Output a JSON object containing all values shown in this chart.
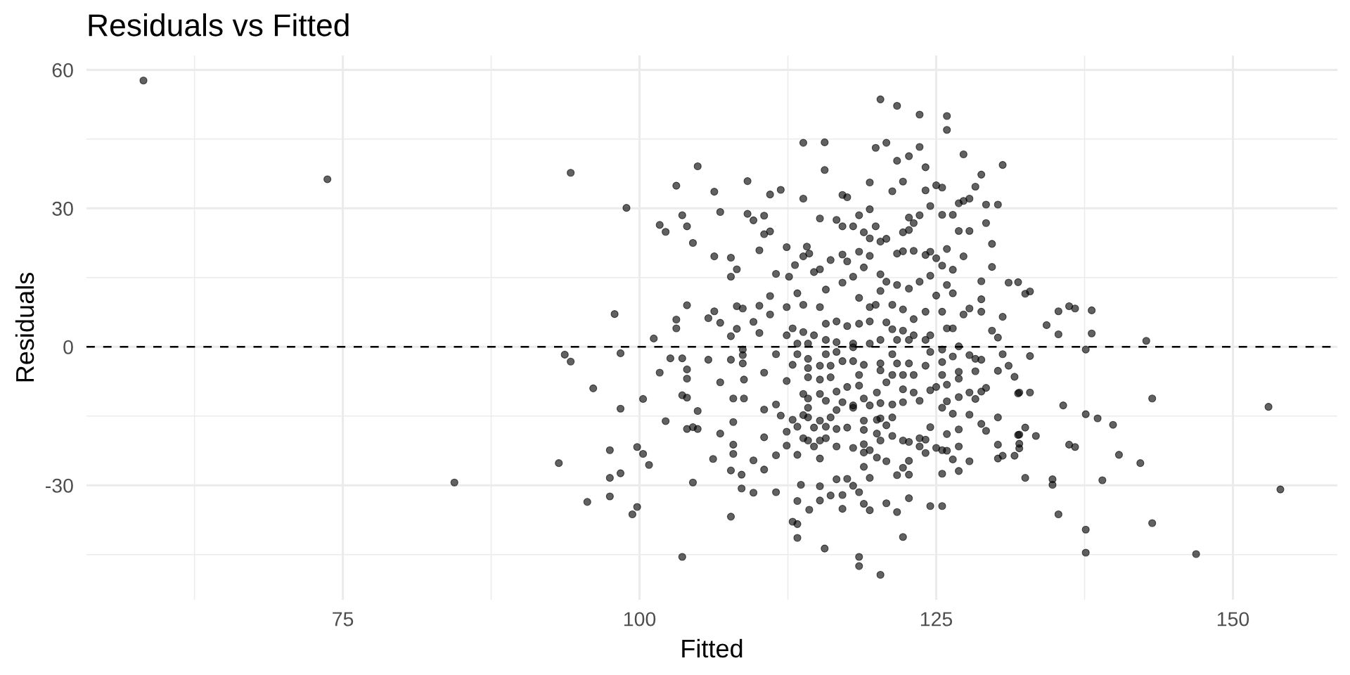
{
  "chart_data": {
    "type": "scatter",
    "title": "Residuals vs Fitted",
    "xlabel": "Fitted",
    "ylabel": "Residuals",
    "xlim": [
      53.4,
      158.8
    ],
    "ylim": [
      -54.8,
      63.1
    ],
    "xticks": [
      {
        "value": 62.5,
        "label": null
      },
      75,
      {
        "value": 87.5,
        "label": null
      },
      100,
      {
        "value": 112.5,
        "label": null
      },
      125,
      {
        "value": 137.5,
        "label": null
      },
      150
    ],
    "yticks": [
      {
        "value": -45,
        "label": null
      },
      -30,
      {
        "value": -15,
        "label": null
      },
      0,
      {
        "value": 15,
        "label": null
      },
      30,
      {
        "value": 45,
        "label": null
      },
      60
    ],
    "grid": true,
    "marker": "circle",
    "ref_lines": [
      {
        "axis": "y",
        "value": 0,
        "color": "#000000",
        "line_style": "dashed"
      }
    ],
    "series": [
      {
        "color": "#000000",
        "x": [
          58.2,
          73.7,
          84.4,
          94.2,
          98.9,
          93.7,
          94.2,
          96.1,
          97.9,
          98.4,
          98.4,
          93.2,
          97.5,
          97.5,
          98.4,
          97.5,
          95.6,
          99.4,
          99.8,
          99.8,
          100.3,
          100.8,
          100.3,
          101.2,
          101.7,
          102.2,
          103.1,
          103.6,
          104.0,
          104.5,
          104.9,
          104.0,
          103.1,
          103.1,
          102.6,
          103.6,
          101.7,
          104.0,
          104.0,
          103.6,
          104.0,
          104.9,
          102.2,
          104.0,
          104.5,
          104.9,
          104.5,
          103.6,
          120.3,
          121.7,
          123.6,
          125.9,
          125.9,
          113.8,
          115.6,
          119.9,
          120.8,
          123.6,
          122.7,
          121.7,
          124.1,
          127.3,
          130.6,
          115.6,
          128.8,
          128.3,
          119.4,
          122.2,
          121.3,
          124.1,
          125.0,
          125.5,
          106.3,
          109.1,
          111.0,
          111.9,
          113.8,
          117.1,
          117.5,
          126.9,
          127.3,
          127.8,
          129.2,
          130.2,
          106.8,
          109.1,
          109.6,
          110.5,
          110.5,
          111.0,
          110.1,
          106.3,
          107.7,
          108.2,
          107.7,
          115.2,
          129.2,
          129.7,
          129.7,
          128.8,
          131.1,
          131.9,
          127.8,
          126.9,
          127.3,
          125.5,
          126.4,
          124.5,
          123.6,
          119.4,
          118.5,
          116.6,
          119.9,
          112.4,
          114.1,
          113.1,
          112.6,
          111.5,
          111.0,
          105.8,
          106.3,
          106.8,
          108.2,
          107.7,
          108.2,
          108.7,
          109.6,
          110.1,
          110.1,
          111.0,
          112.4,
          128.8,
          129.7,
          130.2,
          130.6,
          130.6,
          127.8,
          127.3,
          128.8,
          114.3,
          113.8,
          115.2,
          117.1,
          118.0,
          118.9,
          119.4,
          120.3,
          120.8,
          122.2,
          122.7,
          122.7,
          123.1,
          121.7,
          122.2,
          123.1,
          124.1,
          124.5,
          125.0,
          125.5,
          125.9,
          126.4,
          125.9,
          126.4,
          124.5,
          125.0,
          118.9,
          117.1,
          116.1,
          117.5,
          118.5,
          119.4,
          120.3,
          120.8,
          121.7,
          122.7,
          123.6,
          114.7,
          115.7,
          117.1,
          118.0,
          118.5,
          119.4,
          119.9,
          120.3,
          121.3,
          122.2,
          123.1,
          124.1,
          125.5,
          126.4,
          125.9,
          113.8,
          113.3,
          112.9,
          112.4,
          113.8,
          114.7,
          115.2,
          115.7,
          116.6,
          117.5,
          118.5,
          119.4,
          120.8,
          121.3,
          122.2,
          123.1,
          124.5,
          113.3,
          114.2,
          115.7,
          116.6,
          118.0,
          119.4,
          120.3,
          121.7,
          122.7,
          124.1,
          125.5,
          126.9,
          120.3,
          118.5,
          118.5,
          115.6,
          122.2,
          113.3,
          112.9,
          113.3,
          107.7,
          114.3,
          117.1,
          119.4,
          121.7,
          124.5,
          125.5,
          120.8,
          122.7,
          118.9,
          113.3,
          115.2,
          108.6,
          109.6,
          111.5,
          113.6,
          115.2,
          116.1,
          116.6,
          117.5,
          118.0,
          118.5,
          117.1,
          119.4,
          121.7,
          122.7,
          125.5,
          122.2,
          118.9,
          107.7,
          108.6,
          110.5,
          106.2,
          109.6,
          107.9,
          111.5,
          113.3,
          115.2,
          120.0,
          120.8,
          122.7,
          124.1,
          126.4,
          127.8,
          126.9,
          130.2,
          130.6,
          131.6,
          130.2,
          125.9,
          106.8,
          107.9,
          110.5,
          112.4,
          112.4,
          107.9,
          107.9,
          108.8,
          110.5,
          111.9,
          108.8,
          106.8,
          110.5,
          130.2,
          128.8,
          129.2,
          126.9,
          125.9,
          124.5,
          127.8,
          131.6,
          130.2,
          131.9,
          131.1,
          128.3,
          128.8,
          125.9,
          126.9,
          128.3,
          131.9,
          128.8,
          129.2,
          127.8,
          112.4,
          113.3,
          114.2,
          115.7,
          116.6,
          118.0,
          121.3,
          122.7,
          124.5,
          125.5,
          126.4,
          127.8,
          128.3,
          112.9,
          114.2,
          115.2,
          116.1,
          117.1,
          118.0,
          118.9,
          120.3,
          121.7,
          124.1,
          126.9,
          114.2,
          115.2,
          116.1,
          118.5,
          120.3,
          121.3,
          122.2,
          123.1,
          125.5,
          125.9,
          126.9,
          118.5,
          117.5,
          116.6,
          120.0,
          120.8,
          122.2,
          123.1,
          124.5,
          125.0,
          113.8,
          115.2,
          114.2,
          115.7,
          117.1,
          118.0,
          118.9,
          119.4,
          120.3,
          121.3,
          122.2,
          123.6,
          125.5,
          126.4,
          114.2,
          113.8,
          114.2,
          115.2,
          116.1,
          116.6,
          117.5,
          118.0,
          118.9,
          120.0,
          120.3,
          121.3,
          112.9,
          113.3,
          114.7,
          115.7,
          116.6,
          118.9,
          120.0,
          120.8,
          121.3,
          120.3,
          122.2,
          122.7,
          123.6,
          124.1,
          123.6,
          125.0,
          125.5,
          113.8,
          114.2,
          114.7,
          115.2,
          115.7,
          116.6,
          118.0,
          118.9,
          119.4,
          118.9,
          126.9,
          105.8,
          107.7,
          108.7,
          108.7,
          108.7,
          111.5,
          111.5,
          132.5,
          132.9,
          135.3,
          136.2,
          136.7,
          138.1,
          134.3,
          135.3,
          138.1,
          142.7,
          137.6,
          132.9,
          132.0,
          132.9,
          135.7,
          143.2,
          153.0,
          137.6,
          138.6,
          139.9,
          132.5,
          132.0,
          133.4,
          132.0,
          132.0,
          136.2,
          136.7,
          140.4,
          142.2,
          132.5,
          134.8,
          134.8,
          139.0,
          154.0,
          135.3,
          143.2,
          137.6,
          137.6,
          146.9
        ],
        "values": [
          57.7,
          36.3,
          -29.4,
          37.7,
          30.1,
          -1.7,
          -3.2,
          -9.0,
          7.1,
          -1.4,
          -13.4,
          -25.2,
          -22.4,
          -28.4,
          -27.4,
          -32.4,
          -33.6,
          -36.3,
          -34.7,
          -21.7,
          -23.2,
          -25.6,
          -11.3,
          1.8,
          26.4,
          24.9,
          34.9,
          28.5,
          26.1,
          22.5,
          39.1,
          9.0,
          5.9,
          4.0,
          -2.5,
          -2.5,
          -5.6,
          -4.9,
          -6.9,
          -10.5,
          -11.0,
          -13.9,
          -16.1,
          -17.8,
          -17.4,
          -17.8,
          -29.4,
          -45.5,
          53.6,
          52.2,
          50.3,
          50.0,
          47.0,
          44.2,
          44.3,
          43.1,
          44.2,
          43.3,
          41.3,
          40.3,
          38.9,
          41.7,
          39.4,
          38.3,
          37.3,
          34.7,
          35.6,
          35.8,
          33.7,
          33.9,
          35.0,
          34.5,
          33.6,
          35.9,
          33.0,
          34.0,
          32.1,
          32.9,
          32.4,
          31.1,
          31.6,
          32.1,
          30.8,
          30.8,
          29.2,
          28.8,
          27.4,
          28.4,
          24.4,
          25.0,
          20.9,
          19.6,
          19.3,
          16.8,
          15.2,
          27.8,
          26.8,
          22.3,
          17.3,
          14.2,
          13.9,
          14.0,
          25.1,
          25.1,
          19.6,
          28.6,
          28.6,
          30.5,
          28.5,
          29.8,
          28.5,
          27.5,
          26.1,
          21.6,
          21.7,
          17.7,
          15.2,
          15.8,
          11.0,
          6.2,
          7.7,
          5.2,
          3.9,
          2.3,
          8.8,
          8.3,
          5.4,
          8.9,
          3.0,
          7.0,
          8.6,
          10.3,
          3.5,
          2.0,
          6.5,
          -1.6,
          8.3,
          7.0,
          7.6,
          20.2,
          19.6,
          16.8,
          26.1,
          26.1,
          24.8,
          23.5,
          22.8,
          23.4,
          24.8,
          25.3,
          28.0,
          26.8,
          20.2,
          20.7,
          20.8,
          19.9,
          20.6,
          19.2,
          17.6,
          21.2,
          16.7,
          13.4,
          11.6,
          15.4,
          11.1,
          17.2,
          20.0,
          18.8,
          18.5,
          20.6,
          19.7,
          15.7,
          14.1,
          13.4,
          12.6,
          14.1,
          16.2,
          12.4,
          13.9,
          15.2,
          10.6,
          8.6,
          9.1,
          12.1,
          9.1,
          8.1,
          6.0,
          7.6,
          7.6,
          4.0,
          4.0,
          9.1,
          11.6,
          4.0,
          2.5,
          3.2,
          2.5,
          8.6,
          5.0,
          5.5,
          4.5,
          5.0,
          5.5,
          5.3,
          3.8,
          3.5,
          2.5,
          2.5,
          0.7,
          0.7,
          1.5,
          1.0,
          0.7,
          0.7,
          1.5,
          1.5,
          1.5,
          1.5,
          -0.6,
          0.1,
          -49.4,
          -45.5,
          -47.5,
          -43.7,
          -41.2,
          -41.4,
          -37.9,
          -38.4,
          -36.8,
          -35.3,
          -35.1,
          -35.4,
          -35.8,
          -34.5,
          -34.5,
          -33.9,
          -32.8,
          -34.0,
          -33.4,
          -33.3,
          -30.7,
          -31.6,
          -31.5,
          -29.9,
          -30.2,
          -32.2,
          -28.7,
          -28.6,
          -30.1,
          -31.5,
          -32.1,
          -28.4,
          -27.8,
          -27.7,
          -27.5,
          -26.2,
          -26.0,
          -26.8,
          -27.7,
          -26.6,
          -24.3,
          -24.6,
          -23.2,
          -23.5,
          -23.4,
          -24.2,
          -24.0,
          -24.8,
          -24.7,
          -23.0,
          -24.4,
          -24.8,
          -26.9,
          -24.2,
          -23.6,
          -23.6,
          -21.2,
          -22.5,
          -18.8,
          -21.2,
          -19.6,
          -21.4,
          -18.4,
          -16.3,
          -11.2,
          -11.2,
          -13.6,
          -14.9,
          -7.1,
          -7.7,
          -5.6,
          -15.3,
          -16.7,
          -18.2,
          -17.9,
          -18.9,
          -17.4,
          -14.7,
          -6.5,
          -5.2,
          -10.1,
          -4.1,
          -5.3,
          -2.8,
          -11.8,
          -10.9,
          -11.3,
          -19.1,
          -9.7,
          -8.9,
          -9.9,
          -7.4,
          -1.6,
          -2.6,
          -1.6,
          -1.1,
          -0.1,
          -1.6,
          -3.6,
          -1.1,
          -3.3,
          -2.1,
          -1.8,
          -2.6,
          -3.9,
          -4.6,
          -4.1,
          -4.1,
          -3.1,
          -3.1,
          -3.9,
          -3.6,
          -3.6,
          -4.1,
          -5.4,
          -6.6,
          -7.1,
          -6.6,
          -6.1,
          -5.1,
          -6.1,
          -6.1,
          -6.1,
          -6.1,
          -8.2,
          -6.9,
          -8.4,
          -8.7,
          -9.7,
          -9.9,
          -7.7,
          -9.2,
          -9.9,
          -9.4,
          -8.7,
          -10.2,
          -10.2,
          -11.2,
          -11.7,
          -12.0,
          -12.7,
          -11.2,
          -12.7,
          -12.2,
          -12.5,
          -12.0,
          -11.7,
          -13.2,
          -14.5,
          -13.2,
          -14.8,
          -15.3,
          -16.0,
          -15.3,
          -13.7,
          -17.5,
          -13.2,
          -16.0,
          -15.8,
          -15.5,
          -15.3,
          -15.8,
          -17.3,
          -17.5,
          -17.3,
          -17.8,
          -18.0,
          -18.8,
          -17.0,
          -19.3,
          -20.3,
          -20.3,
          -20.6,
          -19.8,
          -20.1,
          -21.6,
          -21.9,
          -22.4,
          -19.8,
          -20.3,
          -21.6,
          -20.3,
          -19.8,
          -21.6,
          -21.9,
          -21.1,
          -22.4,
          -22.9,
          -21.6,
          -2.8,
          -2.8,
          -0.6,
          -1.8,
          -3.6,
          -1.6,
          -12.5,
          11.5,
          12.0,
          7.7,
          8.8,
          8.3,
          7.9,
          4.7,
          2.7,
          2.9,
          1.3,
          -0.6,
          -2.0,
          -9.9,
          -9.9,
          -12.7,
          -11.2,
          -13.0,
          -14.6,
          -15.5,
          -16.9,
          -17.5,
          -19.0,
          -19.3,
          -21.0,
          -22.0,
          -21.2,
          -21.7,
          -23.4,
          -25.2,
          -28.4,
          -28.7,
          -29.9,
          -28.9,
          -30.9,
          -36.3,
          -38.2,
          -39.6,
          -44.6,
          -44.9
        ]
      }
    ]
  }
}
